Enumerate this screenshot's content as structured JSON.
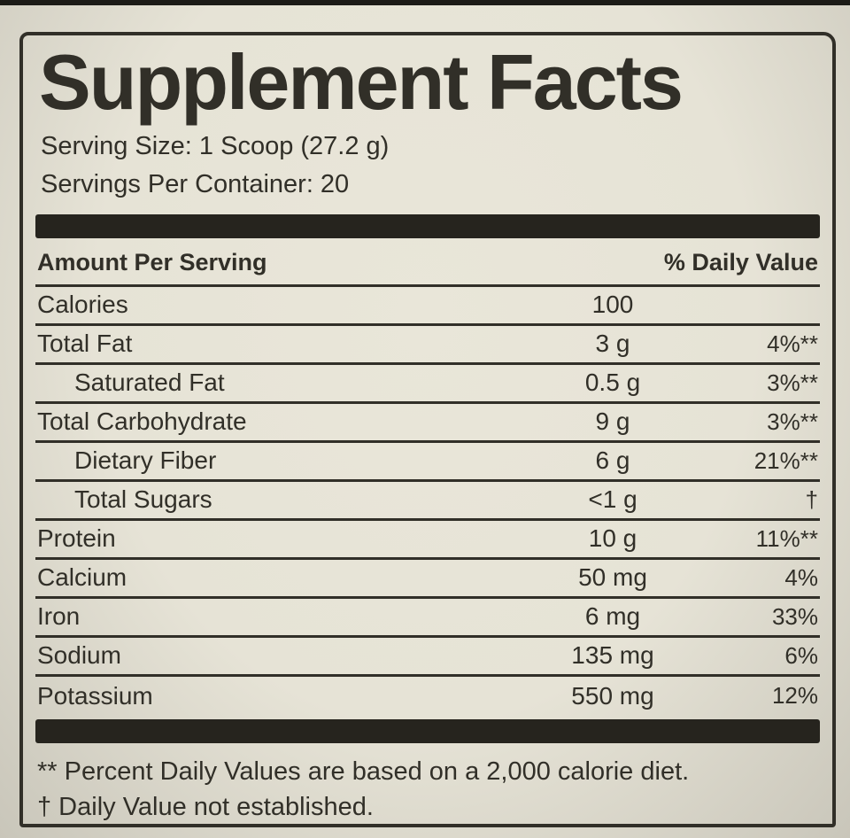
{
  "colors": {
    "ink": "#312f28",
    "bar": "#26241e",
    "paper": "#e6e3d6",
    "paper_edge": "#c9c6ba"
  },
  "label": {
    "title": "Supplement Facts",
    "serving_size": "Serving Size: 1 Scoop (27.2 g)",
    "servings_per_container": "Servings Per Container: 20",
    "columns": {
      "amount_header": "Amount Per Serving",
      "dv_header": "% Daily Value"
    },
    "rows": [
      {
        "name": "Calories",
        "amount": "100",
        "dv": "",
        "indent": false
      },
      {
        "name": "Total Fat",
        "amount": "3 g",
        "dv": "4%**",
        "indent": false
      },
      {
        "name": "Saturated Fat",
        "amount": "0.5 g",
        "dv": "3%**",
        "indent": true
      },
      {
        "name": "Total Carbohydrate",
        "amount": "9 g",
        "dv": "3%**",
        "indent": false
      },
      {
        "name": "Dietary Fiber",
        "amount": "6 g",
        "dv": "21%**",
        "indent": true
      },
      {
        "name": "Total Sugars",
        "amount": "<1 g",
        "dv": "†",
        "indent": true
      },
      {
        "name": "Protein",
        "amount": "10 g",
        "dv": "11%**",
        "indent": false
      },
      {
        "name": "Calcium",
        "amount": "50 mg",
        "dv": "4%",
        "indent": false
      },
      {
        "name": "Iron",
        "amount": "6 mg",
        "dv": "33%",
        "indent": false
      },
      {
        "name": "Sodium",
        "amount": "135 mg",
        "dv": "6%",
        "indent": false
      },
      {
        "name": "Potassium",
        "amount": "550 mg",
        "dv": "12%",
        "indent": false
      }
    ],
    "footnotes": [
      "** Percent Daily Values are based on a 2,000 calorie diet.",
      "† Daily Value not established."
    ]
  }
}
